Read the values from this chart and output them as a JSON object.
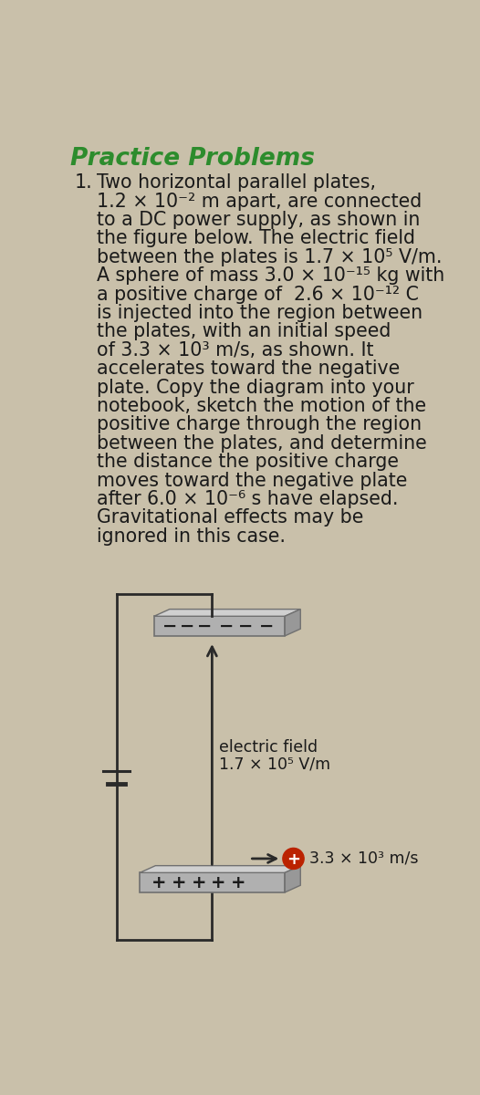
{
  "title": "Practice Problems",
  "title_color": "#2d8c2d",
  "bg_color": "#c9c0aa",
  "text_color": "#1a1a1a",
  "wire_color": "#2a2a2a",
  "battery_color": "#2a2a2a",
  "arrow_color": "#2a2a2a",
  "sphere_color": "#bb2200",
  "plate_face": "#b0b0b0",
  "plate_top": "#d0d0d0",
  "plate_right": "#989898",
  "plate_edge": "#707070",
  "sign_color": "#1a1a1a",
  "ef_label": "electric field",
  "ef_value": "1.7 × 10⁵ V/m",
  "speed_label": "3.3 × 10³ m/s",
  "body_lines": [
    [
      "1.",
      "Two horizontal parallel plates,"
    ],
    [
      "",
      "1.2 × 10⁻² m apart, are connected"
    ],
    [
      "",
      "to a DC power supply, as shown in"
    ],
    [
      "",
      "the figure below. The electric field"
    ],
    [
      "",
      "between the plates is 1.7 × 10⁵ V/m."
    ],
    [
      "",
      "A sphere of mass 3.0 × 10⁻¹⁵ kg with"
    ],
    [
      "",
      "a positive charge of  2.6 × 10⁻¹² C"
    ],
    [
      "",
      "is injected into the region between"
    ],
    [
      "",
      "the plates, with an initial speed"
    ],
    [
      "",
      "of 3.3 × 10³ m/s, as shown. It"
    ],
    [
      "",
      "accelerates toward the negative"
    ],
    [
      "",
      "plate. Copy the diagram into your"
    ],
    [
      "",
      "notebook, sketch the motion of the"
    ],
    [
      "",
      "positive charge through the region"
    ],
    [
      "",
      "between the plates, and determine"
    ],
    [
      "",
      "the distance the positive charge"
    ],
    [
      "",
      "moves toward the negative plate"
    ],
    [
      "",
      "after 6.0 × 10⁻⁶ s have elapsed."
    ],
    [
      "",
      "Gravitational effects may be"
    ],
    [
      "",
      "ignored in this case."
    ]
  ]
}
